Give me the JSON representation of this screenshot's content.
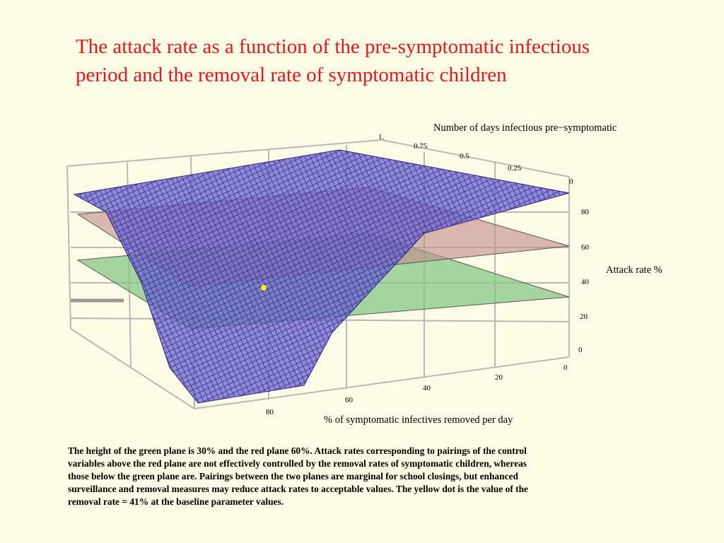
{
  "title": {
    "line1": "The attack rate  as a function of the pre-symptomatic infectious",
    "line2": "period and the removal rate of symptomatic children"
  },
  "figure": {
    "depth_axis": {
      "label": "Number of days infectious pre−symptomatic",
      "ticks": [
        "1.",
        "0.75",
        "0.5",
        "0.25",
        "0"
      ]
    },
    "vertical_axis": {
      "label": "Attack rate %",
      "ticks": [
        "80",
        "60",
        "40",
        "20",
        "0"
      ]
    },
    "front_axis": {
      "label": "% of symptomatic infectives removed per day",
      "ticks": [
        "0",
        "20",
        "40",
        "60",
        "80"
      ]
    }
  },
  "caption": [
    "The height of the green plane is 30% and the red plane 60%. Attack rates corresponding to pairings of the control",
    "variables above the red plane are not effectively controlled by the removal rates of symptomatic children, whereas",
    "those below the green plane are. Pairings between the two planes are marginal for school closings, but enhanced",
    "surveillance and removal measures may reduce attack rates to acceptable values. The yellow dot is the value of the",
    "removal rate = 41% at the baseline parameter values."
  ]
}
